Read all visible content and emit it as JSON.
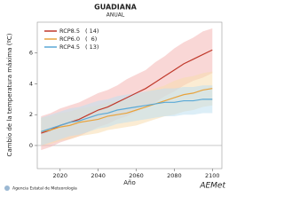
{
  "chart_data": {
    "type": "line",
    "title": "GUADIANA",
    "subtitle": "ANUAL",
    "y_label": "Cambio de la temperatura máxima (ºC)",
    "x_label": "Año",
    "x": [
      2010,
      2015,
      2020,
      2025,
      2030,
      2035,
      2040,
      2045,
      2050,
      2055,
      2060,
      2065,
      2070,
      2075,
      2080,
      2085,
      2090,
      2095,
      2100
    ],
    "xlim": [
      2008,
      2105
    ],
    "xticks": [
      2020,
      2040,
      2060,
      2080,
      2100
    ],
    "ylim": [
      -1.5,
      8
    ],
    "yticks": [
      0,
      2,
      4,
      6
    ],
    "series": [
      {
        "name": "RCP8.5",
        "count": "( 14)",
        "color": "#c0392b",
        "band_color": "#f4b6b4",
        "values": [
          0.8,
          1.0,
          1.3,
          1.5,
          1.7,
          2.0,
          2.3,
          2.5,
          2.8,
          3.1,
          3.4,
          3.7,
          4.1,
          4.5,
          4.9,
          5.3,
          5.6,
          5.9,
          6.2
        ],
        "lower": [
          -0.3,
          -0.1,
          0.2,
          0.4,
          0.6,
          0.9,
          1.2,
          1.4,
          1.7,
          1.9,
          2.2,
          2.5,
          2.8,
          3.2,
          3.5,
          3.9,
          4.2,
          4.4,
          4.7
        ],
        "upper": [
          1.9,
          2.1,
          2.4,
          2.6,
          2.8,
          3.1,
          3.4,
          3.6,
          3.9,
          4.3,
          4.6,
          4.9,
          5.4,
          5.8,
          6.3,
          6.7,
          7.0,
          7.4,
          7.6
        ]
      },
      {
        "name": "RCP6.0",
        "count": "(  6)",
        "color": "#e8a33c",
        "band_color": "#f7dcae",
        "values": [
          0.9,
          1.0,
          1.2,
          1.3,
          1.5,
          1.6,
          1.7,
          1.9,
          2.0,
          2.1,
          2.3,
          2.5,
          2.7,
          2.9,
          3.1,
          3.3,
          3.4,
          3.6,
          3.7
        ],
        "lower": [
          0.0,
          0.1,
          0.3,
          0.4,
          0.6,
          0.7,
          0.8,
          1.0,
          1.1,
          1.2,
          1.3,
          1.5,
          1.7,
          1.9,
          2.0,
          2.2,
          2.3,
          2.5,
          2.6
        ],
        "upper": [
          1.8,
          1.9,
          2.1,
          2.2,
          2.4,
          2.5,
          2.6,
          2.8,
          2.9,
          3.0,
          3.3,
          3.5,
          3.7,
          3.9,
          4.2,
          4.4,
          4.5,
          4.7,
          4.8
        ]
      },
      {
        "name": "RCP4.5",
        "count": "( 13)",
        "color": "#5aa9d6",
        "band_color": "#bfe0f0",
        "values": [
          0.9,
          1.1,
          1.3,
          1.5,
          1.6,
          1.8,
          2.0,
          2.1,
          2.3,
          2.4,
          2.5,
          2.6,
          2.7,
          2.8,
          2.8,
          2.9,
          2.9,
          3.0,
          3.0
        ],
        "lower": [
          0.0,
          0.2,
          0.4,
          0.6,
          0.7,
          0.9,
          1.1,
          1.2,
          1.4,
          1.5,
          1.6,
          1.7,
          1.8,
          1.9,
          1.9,
          2.0,
          2.0,
          2.1,
          2.1
        ],
        "upper": [
          1.8,
          2.0,
          2.2,
          2.4,
          2.5,
          2.7,
          2.9,
          3.0,
          3.2,
          3.3,
          3.4,
          3.5,
          3.6,
          3.7,
          3.7,
          3.8,
          3.8,
          3.9,
          3.9
        ]
      }
    ],
    "footer": "Agencia Estatal de Meteorología",
    "logo": "AEMet"
  }
}
